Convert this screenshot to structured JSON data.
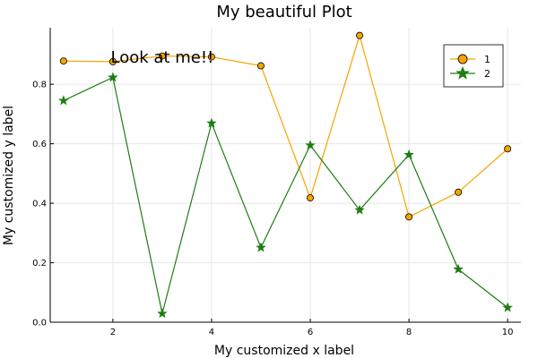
{
  "chart_data": {
    "type": "line",
    "title": "My beautiful Plot",
    "xlabel": "My customized x label",
    "ylabel": "My customized y label",
    "x": [
      1,
      2,
      3,
      4,
      5,
      6,
      7,
      8,
      9,
      10
    ],
    "xlim": [
      0.73,
      10.27
    ],
    "ylim": [
      0.0,
      0.99
    ],
    "xticks": [
      2,
      4,
      6,
      8,
      10
    ],
    "xtick_labels": [
      "2",
      "4",
      "6",
      "8",
      "10"
    ],
    "yticks": [
      0.0,
      0.2,
      0.4,
      0.6,
      0.8
    ],
    "ytick_labels": [
      "0.0",
      "0.2",
      "0.4",
      "0.6",
      "0.8"
    ],
    "grid": true,
    "legend_position": "top-right",
    "series": [
      {
        "name": "1",
        "marker": "circle",
        "color": "#f5a400",
        "values": [
          0.878,
          0.876,
          0.895,
          0.892,
          0.862,
          0.418,
          0.964,
          0.354,
          0.437,
          0.583
        ]
      },
      {
        "name": "2",
        "marker": "star",
        "color": "#1e7d12",
        "values": [
          0.745,
          0.823,
          0.029,
          0.669,
          0.251,
          0.595,
          0.377,
          0.563,
          0.178,
          0.049
        ]
      }
    ],
    "annotations": [
      {
        "text": "Look at me!!",
        "x": 3.0,
        "y": 0.89
      }
    ]
  }
}
